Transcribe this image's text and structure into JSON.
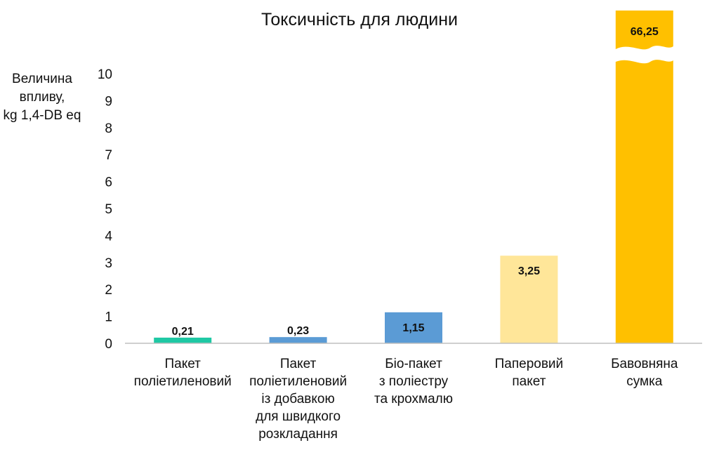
{
  "chart_data": {
    "type": "bar",
    "title": "Токсичність для людини",
    "ylabel": "Величина\nвпливу,\nkg 1,4-DB eq",
    "xlabel": "",
    "ylim": [
      0,
      10
    ],
    "yticks": [
      "0",
      "1",
      "2",
      "3",
      "4",
      "5",
      "6",
      "7",
      "8",
      "9",
      "10"
    ],
    "axis_break": true,
    "grid": false,
    "categories": [
      "Пакет\nполіетиленовий",
      "Пакет\nполіетиленовий\nіз добавкою\nдля швидкого\nрозкладання",
      "Біо-пакет\nз поліестру\nта крохмалю",
      "Паперовий\nпакет",
      "Бавовняна\nсумка"
    ],
    "values": [
      0.21,
      0.23,
      1.15,
      3.25,
      66.25
    ],
    "data_labels": [
      "0,21",
      "0,23",
      "1,15",
      "3,25",
      "66,25"
    ],
    "colors": [
      "#1fc8a4",
      "#5b9bd5",
      "#5b9bd5",
      "#ffe699",
      "#ffc000"
    ]
  }
}
